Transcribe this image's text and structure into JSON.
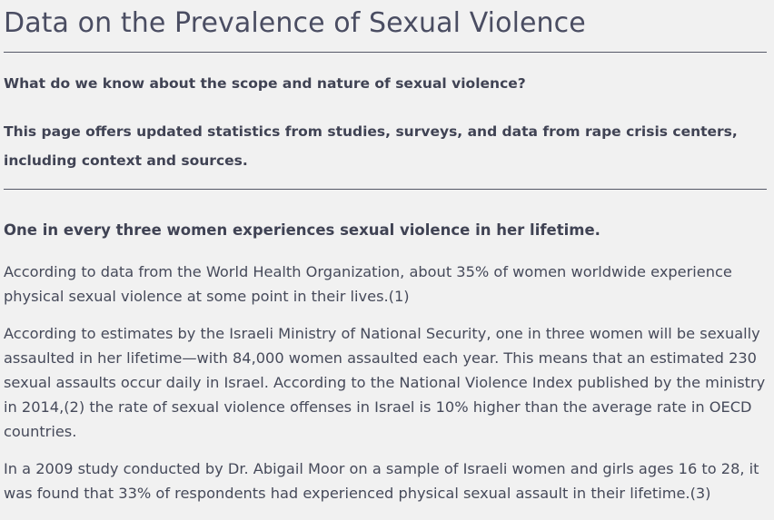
{
  "page": {
    "title": "Data on the Prevalence of Sexual Violence",
    "intro_question": "What do we know about the scope and nature of sexual violence?",
    "intro_description": "This page offers updated statistics from studies, surveys, and data from rape crisis centers, including context and sources."
  },
  "section": {
    "heading": "One in every three women experiences sexual violence in her lifetime.",
    "paragraphs": [
      "According to data from the World Health Organization, about 35% of women worldwide experience physical sexual violence at some point in their lives.(1)",
      "According to estimates by the Israeli Ministry of National Security, one in three women will be sexually assaulted in her lifetime—with 84,000 women assaulted each year. This means that an estimated 230 sexual assaults occur daily in Israel. According to the National Violence Index published by the ministry in 2014,(2) the rate of sexual violence offenses in Israel is 10% higher than the average rate in OECD countries.",
      "In a 2009 study conducted by Dr. Abigail Moor on a sample of Israeli women and girls ages 16 to 28, it was found that 33% of respondents had experienced physical sexual assault in their lifetime.(3)"
    ]
  }
}
